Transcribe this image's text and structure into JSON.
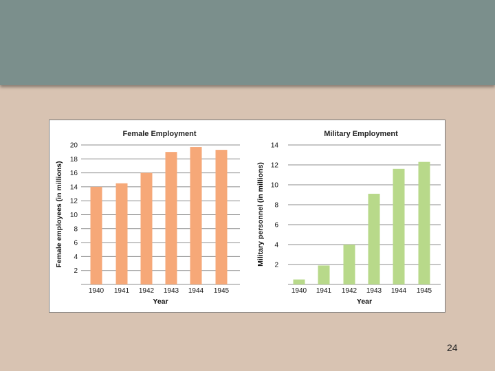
{
  "slide": {
    "page_number": "24"
  },
  "colors": {
    "top_band": "#7b8f8c",
    "background": "#d8c3b2",
    "female_bar": "#f6a878",
    "military_bar": "#b8d98a",
    "gridline": "#8c8c8c"
  },
  "chart_data": [
    {
      "type": "bar",
      "title": "Female Employment",
      "xlabel": "Year",
      "ylabel": "Female employees (in millions)",
      "categories": [
        "1940",
        "1941",
        "1942",
        "1943",
        "1944",
        "1945"
      ],
      "values": [
        14,
        14.5,
        16,
        19,
        19.7,
        19.3
      ],
      "ylim": [
        0,
        20
      ],
      "yticks": [
        2,
        4,
        6,
        8,
        10,
        12,
        14,
        16,
        18,
        20
      ],
      "grid": true,
      "bar_color": "#f6a878"
    },
    {
      "type": "bar",
      "title": "Military Employment",
      "xlabel": "Year",
      "ylabel": "Military personnel (in millions)",
      "categories": [
        "1940",
        "1941",
        "1942",
        "1943",
        "1944",
        "1945"
      ],
      "values": [
        0.5,
        1.9,
        4,
        9.1,
        11.6,
        12.3
      ],
      "ylim": [
        0,
        14
      ],
      "yticks": [
        2,
        4,
        6,
        8,
        10,
        12,
        14
      ],
      "grid": true,
      "bar_color": "#b8d98a"
    }
  ]
}
